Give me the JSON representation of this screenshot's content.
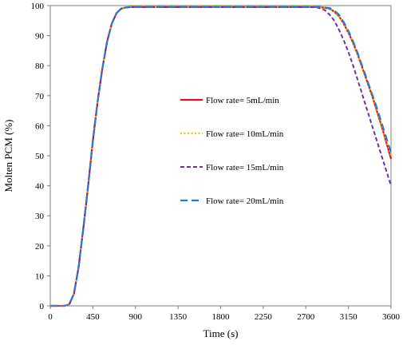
{
  "chart_data": {
    "type": "line",
    "title": "",
    "xlabel": "Time (s)",
    "ylabel": "Molten PCM  (%)",
    "xlim": [
      0,
      3600
    ],
    "ylim": [
      0,
      100
    ],
    "xticks": [
      0,
      450,
      900,
      1350,
      1800,
      2250,
      2700,
      3150,
      3600
    ],
    "yticks": [
      0,
      10,
      20,
      30,
      40,
      50,
      60,
      70,
      80,
      90,
      100
    ],
    "grid": false,
    "legend_position": "center",
    "series": [
      {
        "name": "Flow rate= 5mL/min",
        "color": "#e01010",
        "dash": "solid",
        "x": [
          0,
          150,
          200,
          250,
          300,
          350,
          400,
          450,
          500,
          550,
          600,
          650,
          700,
          750,
          800,
          850,
          900,
          1350,
          1800,
          2250,
          2700,
          2850,
          2950,
          3000,
          3050,
          3100,
          3150,
          3200,
          3250,
          3300,
          3350,
          3400,
          3450,
          3500,
          3550,
          3600
        ],
        "y": [
          0,
          0,
          0.5,
          4,
          13,
          26,
          40,
          55,
          68,
          79,
          88,
          94,
          97.5,
          99,
          99.4,
          99.5,
          99.5,
          99.5,
          99.5,
          99.5,
          99.5,
          99.5,
          99,
          98,
          96.5,
          94,
          91,
          87.5,
          83.5,
          79,
          74.5,
          70,
          65,
          60,
          54.5,
          49
        ]
      },
      {
        "name": "Flow rate= 10mL/min",
        "color": "#f2c400",
        "dash": "dotted",
        "x": [
          0,
          150,
          200,
          250,
          300,
          350,
          400,
          450,
          500,
          550,
          600,
          650,
          700,
          750,
          800,
          850,
          900,
          1350,
          1800,
          2250,
          2700,
          2850,
          2950,
          3000,
          3050,
          3100,
          3150,
          3200,
          3250,
          3300,
          3350,
          3400,
          3450,
          3500,
          3550,
          3600
        ],
        "y": [
          0,
          0,
          0.5,
          4,
          13,
          26,
          40,
          55,
          68,
          79,
          88,
          94,
          97.5,
          99,
          99.4,
          99.5,
          99.5,
          99.5,
          99.5,
          99.5,
          99.5,
          99.5,
          99,
          98,
          96.5,
          94,
          91,
          87.5,
          83.5,
          79,
          74.5,
          70,
          65.5,
          60.5,
          55,
          50
        ]
      },
      {
        "name": "Flow rate= 15mL/min",
        "color": "#7030a0",
        "dash": "dashed",
        "x": [
          0,
          150,
          200,
          250,
          300,
          350,
          400,
          450,
          500,
          550,
          600,
          650,
          700,
          750,
          800,
          850,
          900,
          1350,
          1800,
          2250,
          2700,
          2820,
          2900,
          2950,
          3000,
          3050,
          3100,
          3150,
          3200,
          3250,
          3300,
          3350,
          3400,
          3450,
          3500,
          3550,
          3600
        ],
        "y": [
          0,
          0,
          0.5,
          4,
          13,
          26,
          40,
          55,
          68,
          79,
          88,
          94,
          97.5,
          99,
          99.4,
          99.5,
          99.5,
          99.5,
          99.5,
          99.5,
          99.5,
          99.4,
          98.5,
          97,
          95,
          92,
          88.5,
          84.5,
          80,
          75,
          70,
          65,
          60,
          55,
          50,
          45,
          40
        ]
      },
      {
        "name": "Flow rate= 20mL/min",
        "color": "#2e75d6",
        "dash": "longdash",
        "x": [
          0,
          150,
          200,
          250,
          300,
          350,
          400,
          450,
          500,
          550,
          600,
          650,
          700,
          750,
          800,
          850,
          900,
          1350,
          1800,
          2250,
          2700,
          2850,
          2950,
          3000,
          3050,
          3100,
          3150,
          3200,
          3250,
          3300,
          3350,
          3400,
          3450,
          3500,
          3550,
          3600
        ],
        "y": [
          0,
          0,
          0.5,
          4,
          13,
          26,
          40,
          55,
          68,
          79,
          88,
          94,
          97.5,
          99,
          99.4,
          99.5,
          99.5,
          99.5,
          99.5,
          99.5,
          99.5,
          99.5,
          99.2,
          98.3,
          97,
          94.5,
          91.5,
          88,
          84,
          79.5,
          75,
          70.5,
          66,
          61,
          56,
          51
        ]
      }
    ]
  }
}
